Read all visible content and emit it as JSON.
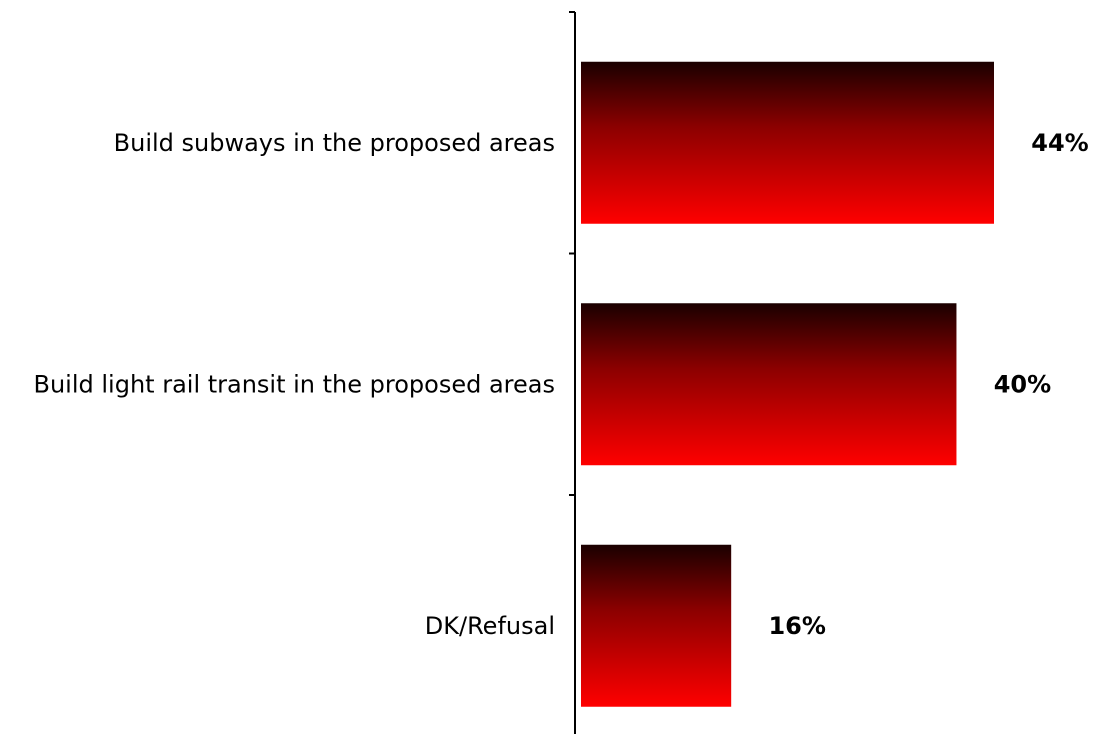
{
  "chart_data": {
    "type": "bar",
    "orientation": "horizontal",
    "title": "",
    "xlabel": "",
    "ylabel": "",
    "categories": [
      "Build subways in the proposed areas",
      "Build light rail transit in the proposed areas",
      "DK/Refusal"
    ],
    "values": [
      44,
      40,
      16
    ],
    "value_labels": [
      "44%",
      "40%",
      "16%"
    ],
    "xlim": [
      0,
      50
    ],
    "grid": false,
    "legend": "none",
    "colors": {
      "bar_gradient_top": "#1a0000",
      "bar_gradient_mid": "#8b0000",
      "bar_gradient_bottom": "#ff0000",
      "axis": "#000000",
      "text": "#000000"
    }
  }
}
